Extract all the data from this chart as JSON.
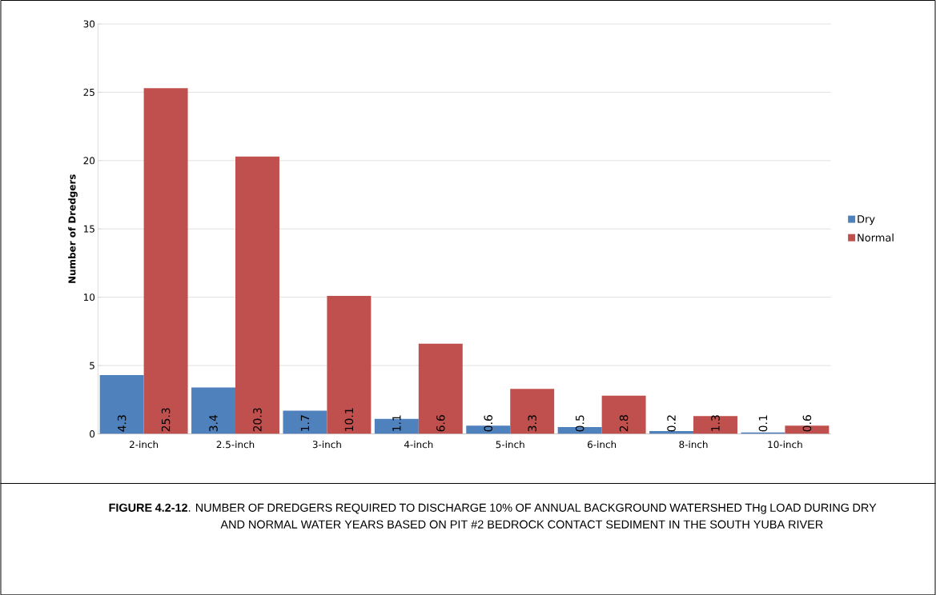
{
  "chart_data": {
    "type": "bar",
    "ylabel": "Number of Dredgers",
    "categories": [
      "2-inch",
      "2.5-inch",
      "3-inch",
      "4-inch",
      "5-inch",
      "6-inch",
      "8-inch",
      "10-inch"
    ],
    "series": [
      {
        "name": "Dry",
        "color": "#4f81bd",
        "values": [
          4.3,
          3.4,
          1.7,
          1.1,
          0.6,
          0.5,
          0.2,
          0.1
        ]
      },
      {
        "name": "Normal",
        "color": "#c0504d",
        "values": [
          25.3,
          20.3,
          10.1,
          6.6,
          3.3,
          2.8,
          1.3,
          0.6
        ]
      }
    ],
    "ylim": [
      0,
      30
    ],
    "yticks": [
      0,
      5,
      10,
      15,
      20,
      25,
      30
    ],
    "grid": "y",
    "legend": "right",
    "data_labels": true,
    "annotations": [
      "**FIGURE 4.2-12**. NUMBER OF DREDGERS REQUIRED TO DISCHARGE 10% OF ANNUAL BACKGROUND WATERSHED THg LOAD DURING DRY AND NORMAL WATER YEARS BASED ON PIT #2 BEDROCK CONTACT SEDIMENT IN THE SOUTH YUBA RIVER"
    ]
  }
}
